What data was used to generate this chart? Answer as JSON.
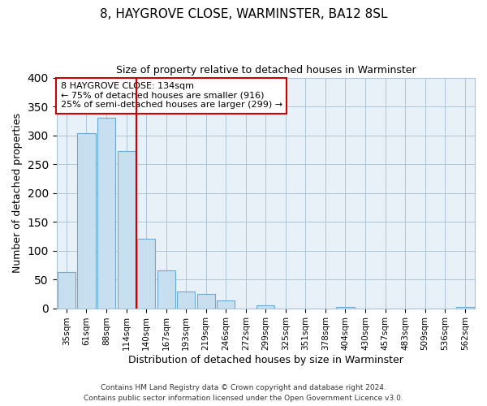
{
  "title": "8, HAYGROVE CLOSE, WARMINSTER, BA12 8SL",
  "subtitle": "Size of property relative to detached houses in Warminster",
  "xlabel": "Distribution of detached houses by size in Warminster",
  "ylabel": "Number of detached properties",
  "bar_labels": [
    "35sqm",
    "61sqm",
    "88sqm",
    "114sqm",
    "140sqm",
    "167sqm",
    "193sqm",
    "219sqm",
    "246sqm",
    "272sqm",
    "299sqm",
    "325sqm",
    "351sqm",
    "378sqm",
    "404sqm",
    "430sqm",
    "457sqm",
    "483sqm",
    "509sqm",
    "536sqm",
    "562sqm"
  ],
  "bar_values": [
    63,
    303,
    330,
    272,
    120,
    65,
    29,
    25,
    13,
    0,
    5,
    0,
    0,
    0,
    2,
    0,
    0,
    0,
    0,
    0,
    2
  ],
  "bar_facecolor": "#c8dff0",
  "bar_edgecolor": "#6aaad4",
  "vline_color": "#cc0000",
  "annotation_text": "8 HAYGROVE CLOSE: 134sqm\n← 75% of detached houses are smaller (916)\n25% of semi-detached houses are larger (299) →",
  "annotation_box_facecolor": "white",
  "annotation_box_edgecolor": "#cc0000",
  "ylim": [
    0,
    400
  ],
  "yticks": [
    0,
    50,
    100,
    150,
    200,
    250,
    300,
    350,
    400
  ],
  "footer_line1": "Contains HM Land Registry data © Crown copyright and database right 2024.",
  "footer_line2": "Contains public sector information licensed under the Open Government Licence v3.0.",
  "fig_bg_color": "#ffffff",
  "plot_bg_color": "#e8f0f8",
  "grid_color": "#b0c4d8",
  "title_fontsize": 11,
  "subtitle_fontsize": 9,
  "ylabel_fontsize": 9,
  "xlabel_fontsize": 9,
  "tick_fontsize": 7.5,
  "footer_fontsize": 6.5
}
